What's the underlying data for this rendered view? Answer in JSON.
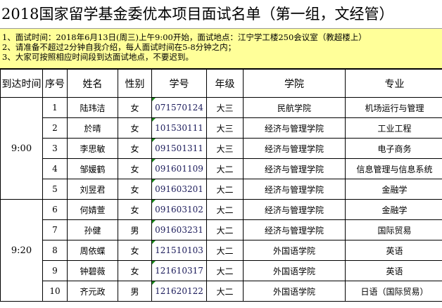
{
  "title": "2018国家留学基金委优本项目面试名单（第一组，文经管）",
  "notes": [
    "1、面试时间：2018年6月13日(周三)上午9:00开始，面试地点：江宁学工楼250会议室（教超楼上）",
    "2、请准备不超过2分钟自我介绍，每人面试时间在5-8分钟之内；",
    "3、大家可按照相应时间段到达面试地点，不要迟到。"
  ],
  "headers": [
    "到达时间",
    "序号",
    "姓名",
    "性别",
    "学号",
    "年级",
    "学院",
    "专业"
  ],
  "groups": [
    {
      "time": "9:00"
    },
    {
      "time": "9:20"
    }
  ],
  "rows": [
    {
      "no": "1",
      "name": "陆玮洁",
      "sex": "女",
      "id": "071570124",
      "grade": "大三",
      "college": "民航学院",
      "major": "机场运行与管理"
    },
    {
      "no": "2",
      "name": "於晴",
      "sex": "女",
      "id": "101530111",
      "grade": "大三",
      "college": "经济与管理学院",
      "major": "工业工程"
    },
    {
      "no": "3",
      "name": "李思敏",
      "sex": "女",
      "id": "091501311",
      "grade": "大三",
      "college": "经济与管理学院",
      "major": "电子商务"
    },
    {
      "no": "4",
      "name": "邹媛鹤",
      "sex": "女",
      "id": "091601109",
      "grade": "大二",
      "college": "经济与管理学院",
      "major": "信息管理与信息系统"
    },
    {
      "no": "5",
      "name": "刘昱君",
      "sex": "女",
      "id": "091603201",
      "grade": "大二",
      "college": "经济与管理学院",
      "major": "金融学"
    },
    {
      "no": "6",
      "name": "何婧萱",
      "sex": "女",
      "id": "091603102",
      "grade": "大二",
      "college": "经济与管理学院",
      "major": "金融学"
    },
    {
      "no": "7",
      "name": "孙健",
      "sex": "男",
      "id": "091603231",
      "grade": "大二",
      "college": "经济与管理学院",
      "major": "国际贸易"
    },
    {
      "no": "8",
      "name": "周依蝶",
      "sex": "女",
      "id": "121510103",
      "grade": "大二",
      "college": "外国语学院",
      "major": "英语"
    },
    {
      "no": "9",
      "name": "钟碧薇",
      "sex": "女",
      "id": "121610317",
      "grade": "大二",
      "college": "外国语学院",
      "major": "英语"
    },
    {
      "no": "10",
      "name": "齐元政",
      "sex": "男",
      "id": "121620122",
      "grade": "大二",
      "college": "外国语学院",
      "major": "日语（国际贸易）"
    }
  ]
}
